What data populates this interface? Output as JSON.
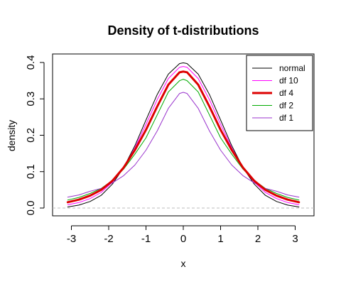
{
  "chart_data": {
    "type": "line",
    "title": "Density of t-distributions",
    "xlabel": "x",
    "ylabel": "density",
    "xlim": [
      -3.2,
      3.2
    ],
    "ylim": [
      0,
      0.4
    ],
    "x_ticks": [
      "-3",
      "-2",
      "-1",
      "0",
      "1",
      "2",
      "3"
    ],
    "y_ticks": [
      "0.0",
      "0.1",
      "0.2",
      "0.3",
      "0.4"
    ],
    "legend_position": "top-right",
    "grid": false,
    "reference_line": {
      "y": 0,
      "style": "dashed",
      "color": "#bdbdbd"
    },
    "x": [
      -3.1,
      -2.8,
      -2.5,
      -2.2,
      -1.9,
      -1.6,
      -1.3,
      -1.0,
      -0.7,
      -0.4,
      -0.1,
      0.0,
      0.1,
      0.4,
      0.7,
      1.0,
      1.3,
      1.6,
      1.9,
      2.2,
      2.5,
      2.8,
      3.1
    ],
    "series": [
      {
        "name": "normal",
        "color": "#000000",
        "width": 1,
        "values": [
          0.003,
          0.008,
          0.018,
          0.035,
          0.066,
          0.111,
          0.171,
          0.242,
          0.312,
          0.368,
          0.397,
          0.399,
          0.397,
          0.368,
          0.312,
          0.242,
          0.171,
          0.111,
          0.066,
          0.035,
          0.018,
          0.008,
          0.003
        ]
      },
      {
        "name": "df 10",
        "color": "#ff00ff",
        "width": 1,
        "values": [
          0.009,
          0.015,
          0.026,
          0.043,
          0.071,
          0.111,
          0.165,
          0.23,
          0.298,
          0.356,
          0.387,
          0.389,
          0.387,
          0.356,
          0.298,
          0.23,
          0.165,
          0.111,
          0.071,
          0.043,
          0.026,
          0.015,
          0.009
        ]
      },
      {
        "name": "df 4",
        "color": "#dd0000",
        "width": 3,
        "values": [
          0.016,
          0.023,
          0.034,
          0.05,
          0.075,
          0.111,
          0.159,
          0.215,
          0.279,
          0.339,
          0.373,
          0.375,
          0.373,
          0.339,
          0.279,
          0.215,
          0.159,
          0.111,
          0.075,
          0.05,
          0.034,
          0.023,
          0.016
        ]
      },
      {
        "name": "df 2",
        "color": "#00aa00",
        "width": 1,
        "values": [
          0.022,
          0.029,
          0.04,
          0.054,
          0.076,
          0.107,
          0.148,
          0.193,
          0.256,
          0.319,
          0.35,
          0.354,
          0.35,
          0.319,
          0.256,
          0.193,
          0.148,
          0.107,
          0.076,
          0.054,
          0.04,
          0.029,
          0.022
        ]
      },
      {
        "name": "df 1",
        "color": "#9933cc",
        "width": 1,
        "values": [
          0.03,
          0.036,
          0.046,
          0.054,
          0.069,
          0.089,
          0.118,
          0.159,
          0.212,
          0.274,
          0.315,
          0.318,
          0.315,
          0.274,
          0.212,
          0.159,
          0.118,
          0.089,
          0.069,
          0.054,
          0.046,
          0.036,
          0.03
        ]
      }
    ]
  }
}
